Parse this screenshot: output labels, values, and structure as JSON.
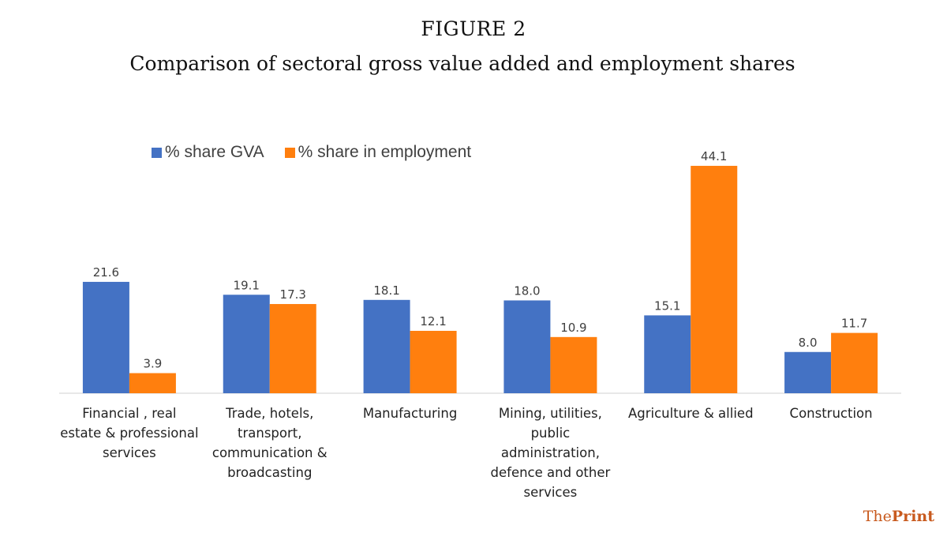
{
  "figure_label": "FIGURE 2",
  "brand": {
    "part1": "The",
    "part2": "Print"
  },
  "chart_data": {
    "type": "bar",
    "title": "Comparison of sectoral gross value added and employment shares",
    "categories": [
      [
        "Financial , real",
        "estate & professional",
        "services"
      ],
      [
        "Trade, hotels,",
        "transport,",
        "communication &",
        "broadcasting"
      ],
      [
        "Manufacturing"
      ],
      [
        "Mining, utilities,",
        "public",
        "administration,",
        "defence and other",
        "services"
      ],
      [
        "Agriculture & allied"
      ],
      [
        "Construction"
      ]
    ],
    "series": [
      {
        "name": "% share GVA",
        "color": "#4472C4",
        "values": [
          21.6,
          19.1,
          18.1,
          18.0,
          15.1,
          8.0
        ]
      },
      {
        "name": "% share in employment",
        "color": "#FF7F0E",
        "values": [
          3.9,
          17.3,
          12.1,
          10.9,
          44.1,
          11.7
        ]
      }
    ],
    "data_labels": true,
    "grid": false,
    "legend_position": "top-left",
    "xlabel": "",
    "ylabel": ""
  }
}
